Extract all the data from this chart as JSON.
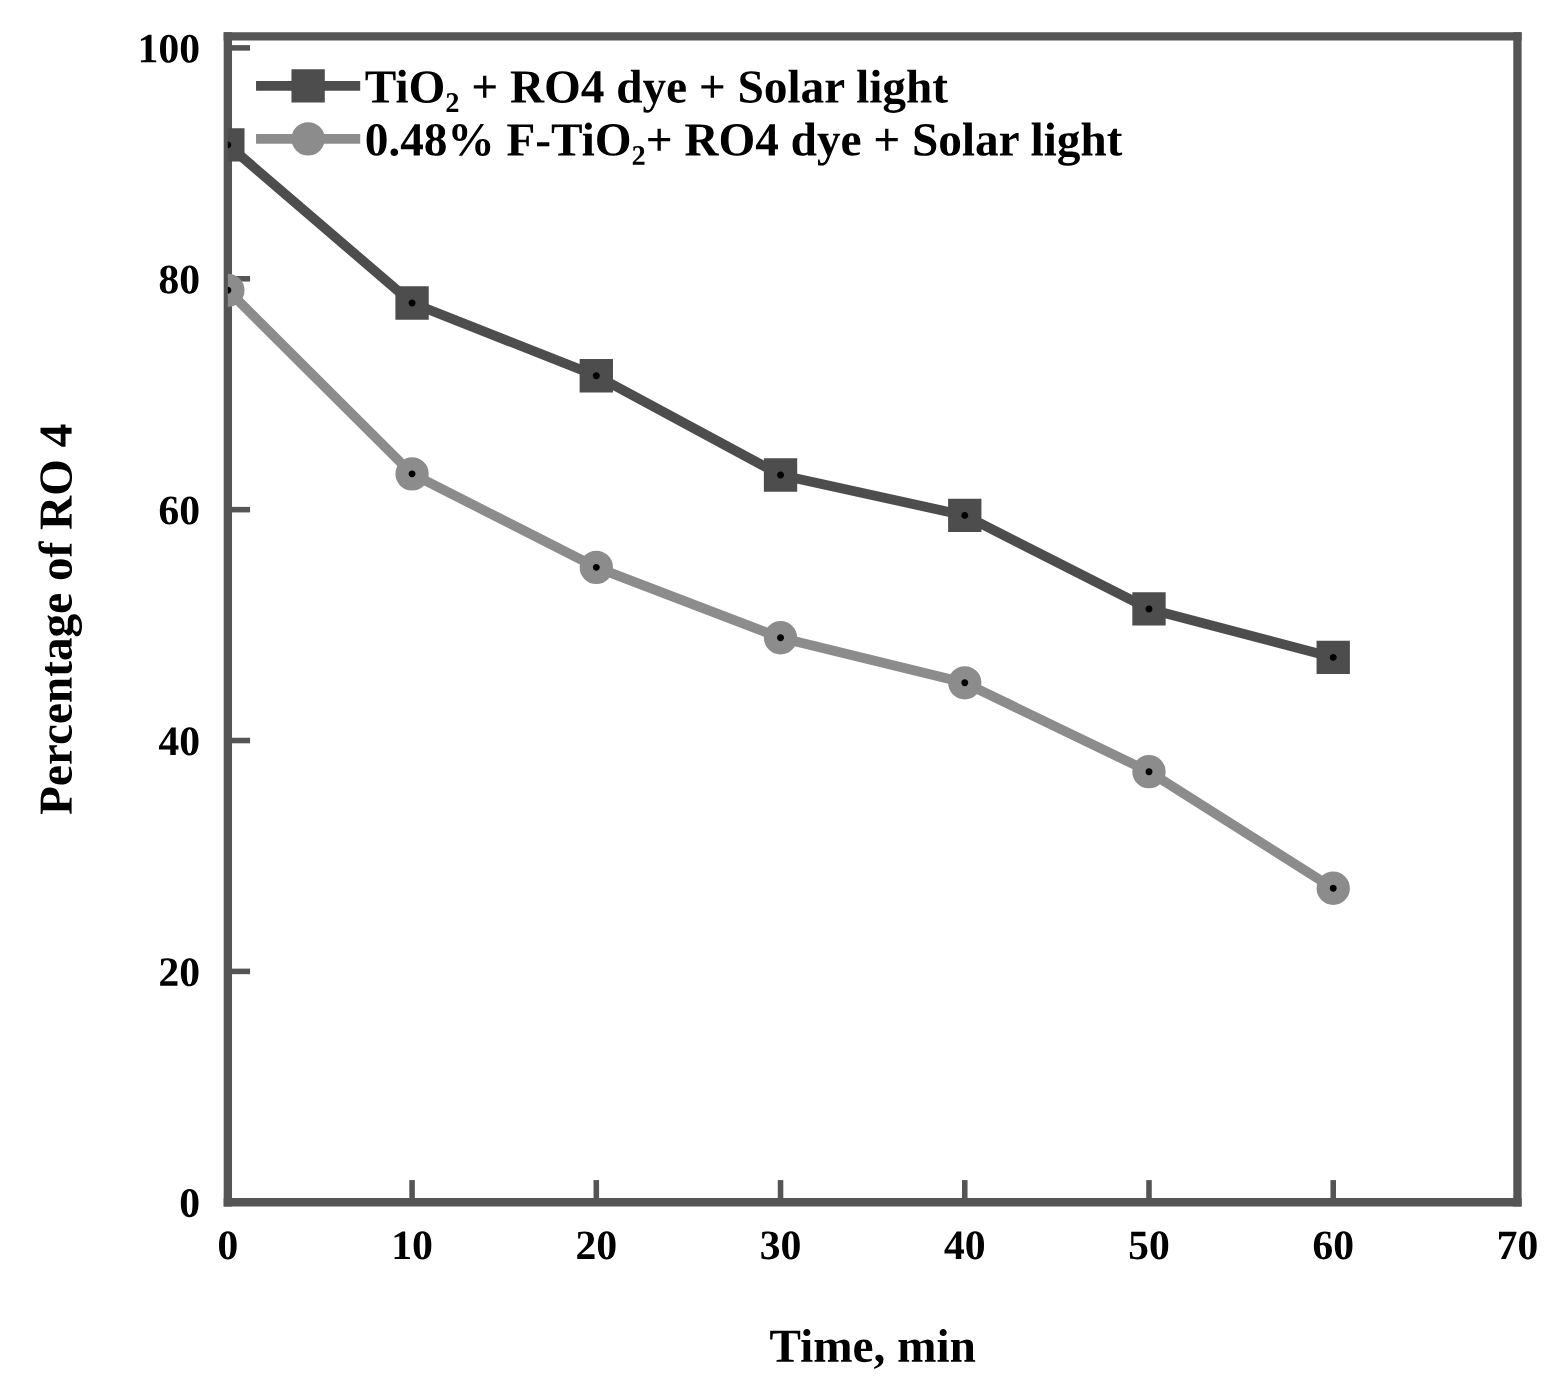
{
  "chart_data": {
    "type": "line",
    "xlabel": "Time, min",
    "ylabel": "Percentage of RO 4",
    "x": [
      0,
      10,
      20,
      30,
      40,
      50,
      60
    ],
    "series": [
      {
        "name": "TiO₂ + RO4 dye + Solar light",
        "color": "#4d4d4d",
        "marker": "square",
        "values": [
          91.6,
          77.9,
          71.6,
          63.0,
          59.5,
          51.4,
          47.2
        ]
      },
      {
        "name": "0.48% F-TiO₂+ RO4 dye + Solar light",
        "color": "#8c8c8c",
        "marker": "circle",
        "values": [
          79.0,
          63.1,
          55.0,
          48.9,
          45.0,
          37.3,
          27.2
        ]
      }
    ],
    "xlim": [
      0,
      70
    ],
    "xticks": [
      0,
      10,
      20,
      30,
      40,
      50,
      60,
      70
    ],
    "ylim": [
      0,
      101
    ],
    "yticks": [
      0,
      20,
      40,
      60,
      80,
      100
    ],
    "grid": false,
    "legend": "top left",
    "line_style": "solid"
  }
}
